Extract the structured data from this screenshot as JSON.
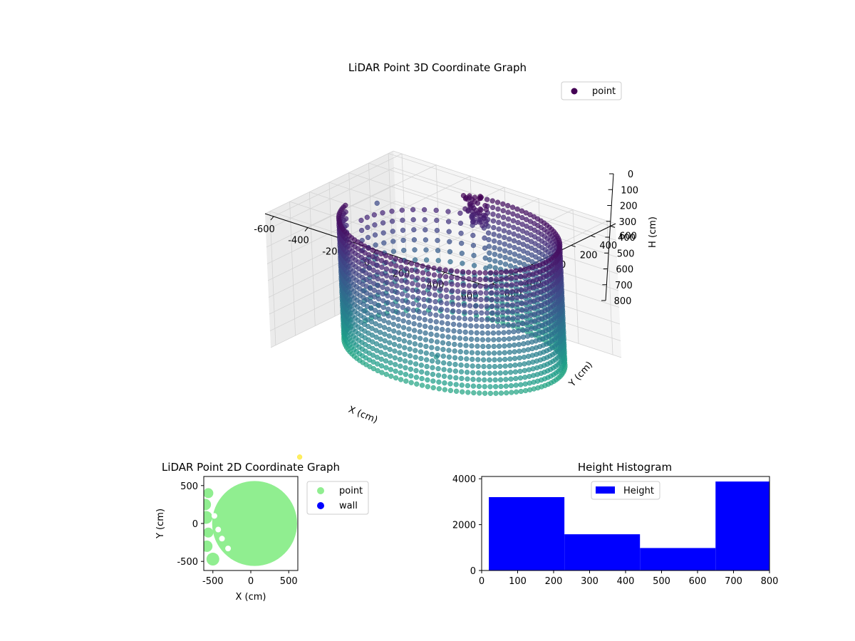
{
  "chart_data": [
    {
      "type": "scatter3d",
      "title": "LiDAR Point 3D Coordinate Graph",
      "xlabel": "X (cm)",
      "ylabel": "Y (cm)",
      "zlabel": "H (cm)",
      "xlim": [
        -650,
        650
      ],
      "ylim": [
        -650,
        650
      ],
      "zlim": [
        0,
        800
      ],
      "z_inverted": true,
      "x_ticks": [
        "-600",
        "-400",
        "-200",
        "0",
        "200",
        "400",
        "600"
      ],
      "y_ticks": [
        "-600",
        "-400",
        "-200",
        "0",
        "200",
        "400",
        "600"
      ],
      "z_ticks": [
        "0",
        "100",
        "200",
        "300",
        "400",
        "500",
        "600",
        "700",
        "800"
      ],
      "legend": {
        "placement": "upper-right",
        "entries": [
          {
            "label": "point",
            "color": "#440154"
          }
        ]
      },
      "grid": true,
      "colormap": "viridis",
      "series": [
        {
          "shape": "ring",
          "center": [
            50,
            0
          ],
          "radius": 560,
          "angle_start": -170,
          "angle_end": 100,
          "angle_step": 3,
          "h_min": 60,
          "h_max": 780,
          "h_step": 40
        },
        {
          "shape": "partial_ring",
          "center": [
            50,
            0
          ],
          "radius": 500,
          "angle_start": 100,
          "angle_end": 190,
          "angle_step": 7,
          "h_min": 150,
          "h_max": 800,
          "h_step": 60
        }
      ],
      "clusters": [
        {
          "x": -40,
          "y": 420,
          "h_min": 0,
          "h_max": 160,
          "count": 50
        }
      ],
      "outliers": [
        {
          "x": -700,
          "y": 550,
          "h": 300
        },
        {
          "x": -650,
          "y": 420,
          "h": 580
        },
        {
          "x": -560,
          "y": -560,
          "h": 1450
        },
        {
          "x": 120,
          "y": -300,
          "h": 700
        }
      ]
    },
    {
      "type": "scatter",
      "title": "LiDAR Point 2D Coordinate Graph",
      "xlabel": "X (cm)",
      "ylabel": "Y (cm)",
      "xlim": [
        -620,
        620
      ],
      "ylim": [
        -620,
        620
      ],
      "x_ticks": [
        "-500",
        "0",
        "500"
      ],
      "y_ticks": [
        "-500",
        "0",
        "500"
      ],
      "legend": {
        "placement": "outside-right",
        "entries": [
          {
            "label": "point",
            "color": "#90ee90"
          },
          {
            "label": "wall",
            "color": "#0000ff"
          }
        ]
      },
      "series": [
        {
          "name": "point",
          "color": "#90ee90",
          "shape": "disc",
          "center": [
            50,
            0
          ],
          "radius": 560
        },
        {
          "name": "wall",
          "color": "#0000ff",
          "points": []
        }
      ]
    },
    {
      "type": "bar",
      "title": "Height Histogram",
      "xlim": [
        0,
        800
      ],
      "ylim": [
        0,
        4100
      ],
      "x_ticks": [
        "0",
        "100",
        "200",
        "300",
        "400",
        "500",
        "600",
        "700",
        "800"
      ],
      "y_ticks": [
        "0",
        "2000",
        "4000"
      ],
      "legend": {
        "placement": "upper-center",
        "entries": [
          {
            "label": "Height",
            "color": "#0000ff"
          }
        ]
      },
      "bins": [
        {
          "x0": 20,
          "x1": 230,
          "value": 3200
        },
        {
          "x0": 230,
          "x1": 440,
          "value": 1580
        },
        {
          "x0": 440,
          "x1": 650,
          "value": 980
        },
        {
          "x0": 650,
          "x1": 860,
          "value": 3880
        }
      ],
      "color": "#0000ff"
    }
  ]
}
